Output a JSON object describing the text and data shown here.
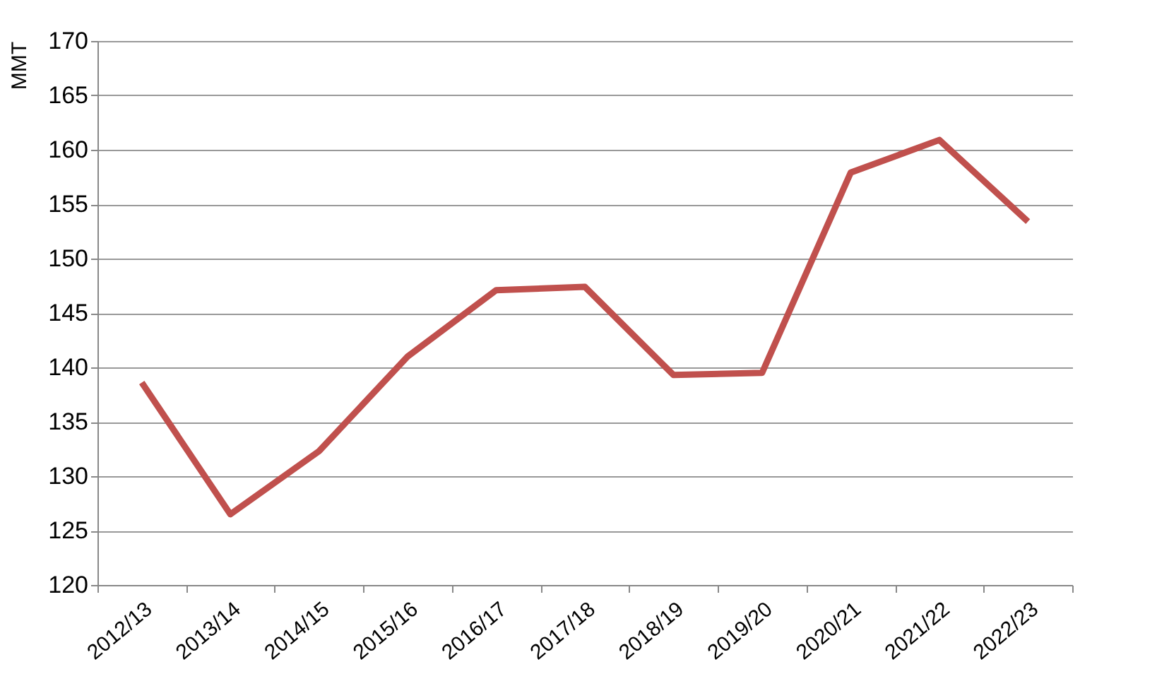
{
  "chart_data": {
    "type": "line",
    "ylabel": "MMT",
    "categories": [
      "2012/13",
      "2013/14",
      "2014/15",
      "2015/16",
      "2016/17",
      "2017/18",
      "2018/19",
      "2019/20",
      "2020/21",
      "2021/22",
      "2022/23"
    ],
    "series": [
      {
        "color": "#c0504d",
        "values": [
          138.6,
          126.5,
          132.3,
          141.0,
          147.1,
          147.4,
          139.3,
          139.5,
          157.9,
          160.9,
          153.4
        ]
      }
    ],
    "ylim": [
      120,
      170
    ],
    "yticks": [
      120,
      125,
      130,
      135,
      140,
      145,
      150,
      155,
      160,
      165,
      170
    ],
    "grid": "y",
    "marker": "none",
    "line_style": "solid"
  }
}
